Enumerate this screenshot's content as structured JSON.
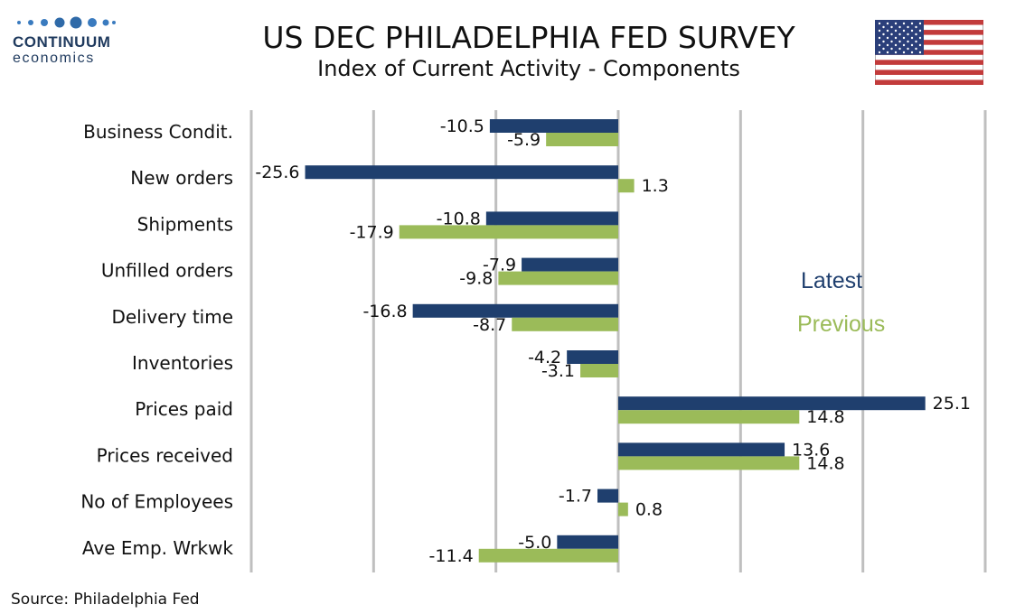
{
  "logo": {
    "name": "CONTINUUM",
    "sub": "economics"
  },
  "header": {
    "title": "US DEC PHILADELPHIA FED SURVEY",
    "subtitle": "Index of Current Activity - Components"
  },
  "source": "Source: Philadelphia Fed",
  "colors": {
    "latest": "#1f3f6e",
    "previous": "#9bbb59",
    "grid": "#bfbfbf"
  },
  "chart_data": {
    "type": "bar",
    "orientation": "horizontal",
    "title": "US DEC PHILADELPHIA FED SURVEY",
    "subtitle": "Index of Current Activity - Components",
    "categories": [
      "Business Condit.",
      "New orders",
      "Shipments",
      "Unfilled orders",
      "Delivery time",
      "Inventories",
      "Prices paid",
      "Prices received",
      "No of Employees",
      "Ave Emp. Wrkwk"
    ],
    "series": [
      {
        "name": "Latest",
        "values": [
          -10.5,
          -25.6,
          -10.8,
          -7.9,
          -16.8,
          -4.2,
          25.1,
          13.6,
          -1.7,
          -5.0
        ]
      },
      {
        "name": "Previous",
        "values": [
          -5.9,
          1.3,
          -17.9,
          -9.8,
          -8.7,
          -3.1,
          14.8,
          14.8,
          0.8,
          -11.4
        ]
      }
    ],
    "value_labels": {
      "latest": [
        "-10.5",
        "-25.6",
        "-10.8",
        "-7.9",
        "-16.8",
        "-4.2",
        "25.1",
        "13.6",
        "-1.7",
        "-5.0"
      ],
      "previous": [
        "-5.9",
        "1.3",
        "-17.9",
        "-9.8",
        "-8.7",
        "-3.1",
        "14.8",
        "14.8",
        "0.8",
        "-11.4"
      ]
    },
    "xlim": [
      -30,
      30
    ],
    "gridlines": "vertical",
    "tick_labels_shown": false,
    "legend_placement": "right"
  }
}
